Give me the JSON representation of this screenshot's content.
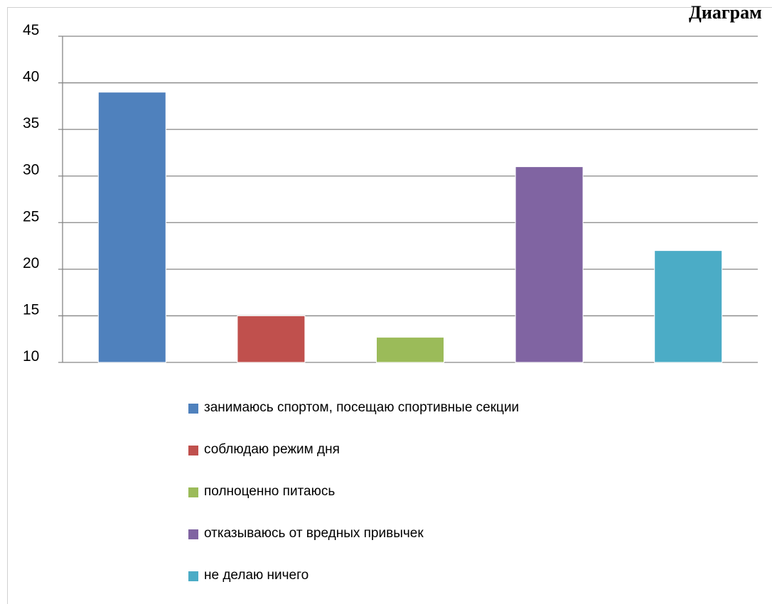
{
  "chart_data": {
    "type": "bar",
    "title": "Диаграм",
    "categories": [
      "занимаюсь спортом, посещаю спортивные секции",
      "соблюдаю режим дня",
      "полноценно питаюсь",
      "отказываюсь от вредных привычек",
      "не делаю ничего"
    ],
    "values": [
      39,
      15,
      12.7,
      31,
      22
    ],
    "colors": [
      "#4f81bd",
      "#c0504d",
      "#9bbb59",
      "#8064a2",
      "#4bacc6"
    ],
    "ylim": [
      10,
      45
    ],
    "yticks": [
      "45",
      "40",
      "35",
      "30",
      "25",
      "20",
      "15",
      "10"
    ],
    "grid": true,
    "legend_position": "bottom"
  }
}
